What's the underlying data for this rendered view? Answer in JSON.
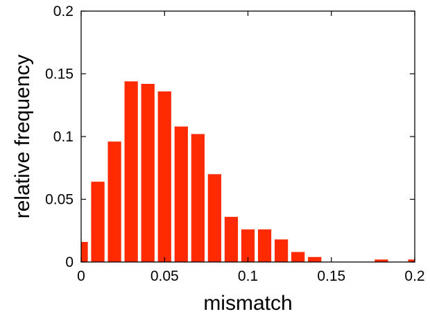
{
  "chart_data": {
    "type": "bar",
    "title": "",
    "xlabel": "mismatch",
    "ylabel": "relative frequency",
    "xlim": [
      0,
      0.2
    ],
    "ylim": [
      0,
      0.2
    ],
    "xticks": [
      0,
      0.05,
      0.1,
      0.15,
      0.2
    ],
    "yticks": [
      0,
      0.05,
      0.1,
      0.15,
      0.2
    ],
    "xtick_labels": [
      "0",
      "0.05",
      "0.1",
      "0.15",
      "0.2"
    ],
    "ytick_labels": [
      "0",
      "0.05",
      "0.1",
      "0.15",
      "0.2"
    ],
    "grid": false,
    "bar_color": "#ff2a00",
    "bin_width": 0.01,
    "x": [
      0.0,
      0.01,
      0.02,
      0.03,
      0.04,
      0.05,
      0.06,
      0.07,
      0.08,
      0.09,
      0.1,
      0.11,
      0.12,
      0.13,
      0.14,
      0.15,
      0.16,
      0.17,
      0.18,
      0.19,
      0.2
    ],
    "values": [
      0.016,
      0.064,
      0.096,
      0.144,
      0.142,
      0.136,
      0.108,
      0.102,
      0.07,
      0.036,
      0.026,
      0.026,
      0.018,
      0.008,
      0.004,
      0.0,
      0.0,
      0.0,
      0.002,
      0.0,
      0.002
    ]
  }
}
